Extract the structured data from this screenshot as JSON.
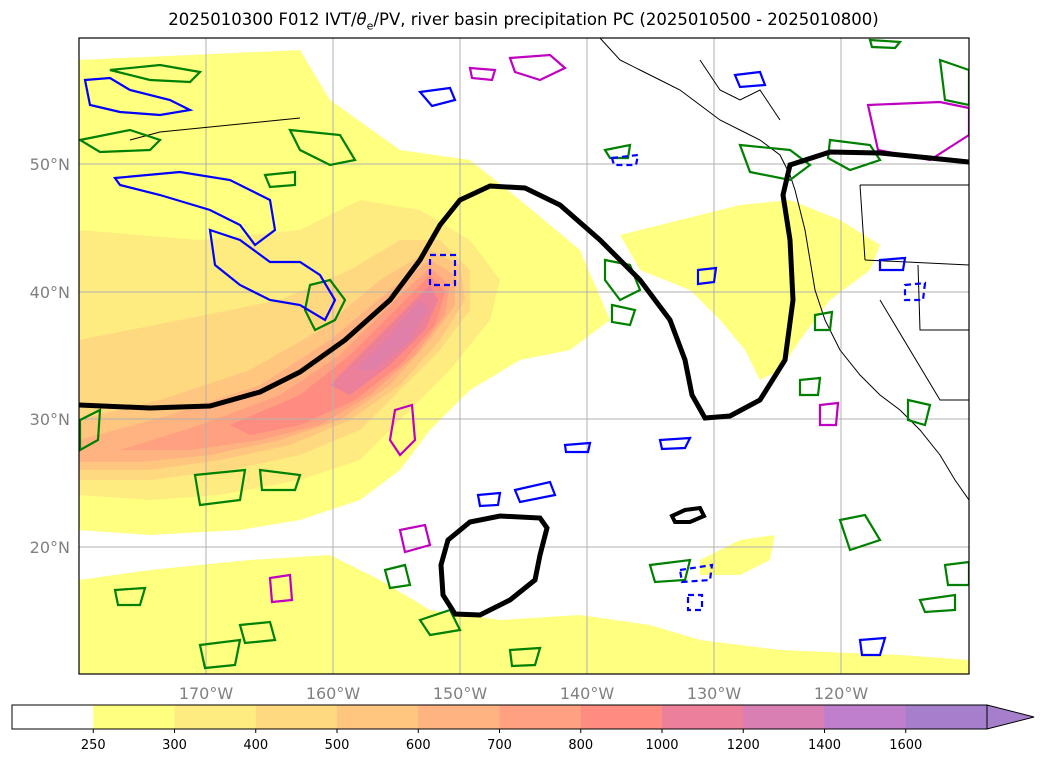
{
  "title": "2025010300 F012 IVT/θe/PV, river basin precipitation PC (2025010500 - 2025010800)",
  "title_parts": {
    "prefix": "2025010300 F012 IVT/",
    "theta": "θ",
    "sub": "e",
    "suffix": "/PV, river basin precipitation PC (2025010500 - 2025010800)"
  },
  "map": {
    "projection": "mercator",
    "lon_range": [
      -180,
      -110
    ],
    "lat_range": [
      10,
      60
    ],
    "lat_labels": [
      "50°N",
      "40°N",
      "30°N",
      "20°N"
    ],
    "lon_labels": [
      "170°W",
      "160°W",
      "150°W",
      "140°W",
      "130°W",
      "120°W"
    ],
    "grid": true
  },
  "colorbar": {
    "labels": [
      "250",
      "300",
      "400",
      "500",
      "600",
      "700",
      "800",
      "1000",
      "1200",
      "1400",
      "1600"
    ],
    "colors": [
      "#ffffff",
      "#ffff80",
      "#ffec80",
      "#ffd980",
      "#ffc680",
      "#ffb380",
      "#ffa080",
      "#ff8c80",
      "#ec7f99",
      "#d97fb3",
      "#bf7fcc",
      "#a67fcc"
    ],
    "extend": "max"
  },
  "legend_colors": {
    "theta_e": "#000000",
    "pv_green": "#008000",
    "pv_blue": "#0000ff",
    "pv_magenta": "#c000c0"
  }
}
